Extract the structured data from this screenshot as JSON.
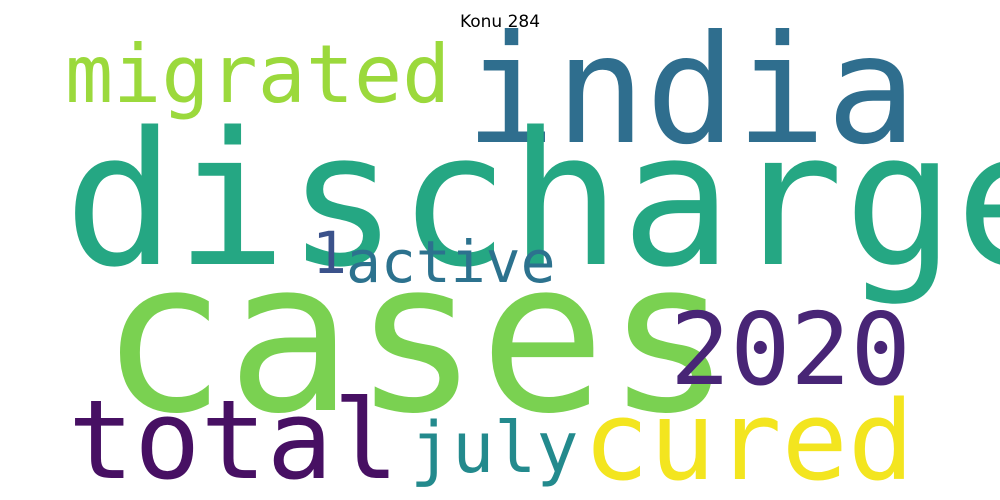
{
  "title": "Konu 284",
  "words": [
    {
      "id": "migrated",
      "text": "migrated",
      "color": "#9bd93c"
    },
    {
      "id": "india",
      "text": "india",
      "color": "#2f6e8e"
    },
    {
      "id": "discharged",
      "text": "discharged",
      "color": "#25a783"
    },
    {
      "id": "one",
      "text": "1",
      "color": "#3b528b"
    },
    {
      "id": "active",
      "text": "active",
      "color": "#2c728e"
    },
    {
      "id": "cases",
      "text": "cases",
      "color": "#7ad151"
    },
    {
      "id": "y2020",
      "text": "2020",
      "color": "#482576"
    },
    {
      "id": "total",
      "text": "total",
      "color": "#471063"
    },
    {
      "id": "july",
      "text": "july",
      "color": "#238a8d"
    },
    {
      "id": "cured",
      "text": "cured",
      "color": "#f3e51f"
    }
  ]
}
